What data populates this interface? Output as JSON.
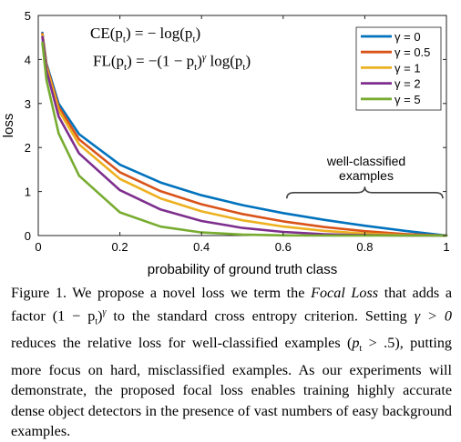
{
  "chart_data": {
    "type": "line",
    "xlabel": "probability of ground truth class",
    "ylabel": "loss",
    "xlim": [
      0,
      1
    ],
    "ylim": [
      0,
      5
    ],
    "xticks": [
      0,
      0.2,
      0.4,
      0.6,
      0.8,
      1
    ],
    "xtick_labels": [
      "0",
      "0.2",
      "0.4",
      "0.6",
      "0.8",
      "1"
    ],
    "yticks": [
      0,
      1,
      2,
      3,
      4,
      5
    ],
    "ytick_labels": [
      "0",
      "1",
      "2",
      "3",
      "4",
      "5"
    ],
    "grid": false,
    "legend_position": "top-right",
    "x": [
      0.01,
      0.02,
      0.05,
      0.1,
      0.2,
      0.3,
      0.4,
      0.5,
      0.6,
      0.7,
      0.8,
      0.9,
      1.0
    ],
    "series": [
      {
        "name": "γ = 0",
        "color": "#0072BD",
        "values": [
          4.605,
          3.912,
          2.996,
          2.303,
          1.609,
          1.204,
          0.916,
          0.693,
          0.511,
          0.357,
          0.223,
          0.105,
          0
        ]
      },
      {
        "name": "γ = 0.5",
        "color": "#D95319",
        "values": [
          4.582,
          3.873,
          2.92,
          2.185,
          1.439,
          1.007,
          0.71,
          0.49,
          0.323,
          0.195,
          0.1,
          0.033,
          0
        ]
      },
      {
        "name": "γ = 1",
        "color": "#EDB120",
        "values": [
          4.559,
          3.834,
          2.846,
          2.072,
          1.288,
          0.843,
          0.55,
          0.347,
          0.204,
          0.107,
          0.045,
          0.011,
          0
        ]
      },
      {
        "name": "γ = 2",
        "color": "#7E2F8E",
        "values": [
          4.514,
          3.757,
          2.704,
          1.865,
          1.03,
          0.59,
          0.33,
          0.173,
          0.082,
          0.032,
          0.009,
          0.001,
          0
        ]
      },
      {
        "name": "γ = 5",
        "color": "#77AC30",
        "values": [
          4.38,
          3.534,
          2.318,
          1.36,
          0.527,
          0.202,
          0.071,
          0.022,
          0.005,
          0.001,
          0.0,
          0.0,
          0
        ]
      }
    ],
    "annotation": {
      "text_line1": "well-classified",
      "text_line2": "examples",
      "x_range": [
        0.6,
        1.0
      ],
      "y": 0.8
    }
  },
  "equations": {
    "ce": {
      "lhs": "CE(p",
      "lhs_sub": "t",
      "rhs": ") = − log(p",
      "rhs_sub": "t",
      "end": ")"
    },
    "fl": {
      "lhs": "FL(p",
      "lhs_sub": "t",
      "mid": ") = −(1 − p",
      "mid_sub": "t",
      "pow": "γ",
      "rhs": " log(p",
      "rhs_sub": "t",
      "end": ")"
    }
  },
  "caption": {
    "label": "Figure 1.",
    "s1a": "We propose a novel loss we term the",
    "s1b": "Focal Loss",
    "s1c": "that adds a factor (1 − p",
    "s1d": "t",
    "s1e": ")",
    "s1f": "γ",
    "s1g": "to the standard cross entropy criterion. Setting",
    "s2a": "γ > 0",
    "s2b": "reduces the relative loss for well-classified examples (",
    "s2c": "p",
    "s2d": "t",
    "s2e": " > .5), putting more focus on hard, misclassified examples. As our experiments will demonstrate, the proposed focal loss enables training highly accurate dense object detectors in the presence of vast numbers of easy background examples."
  }
}
